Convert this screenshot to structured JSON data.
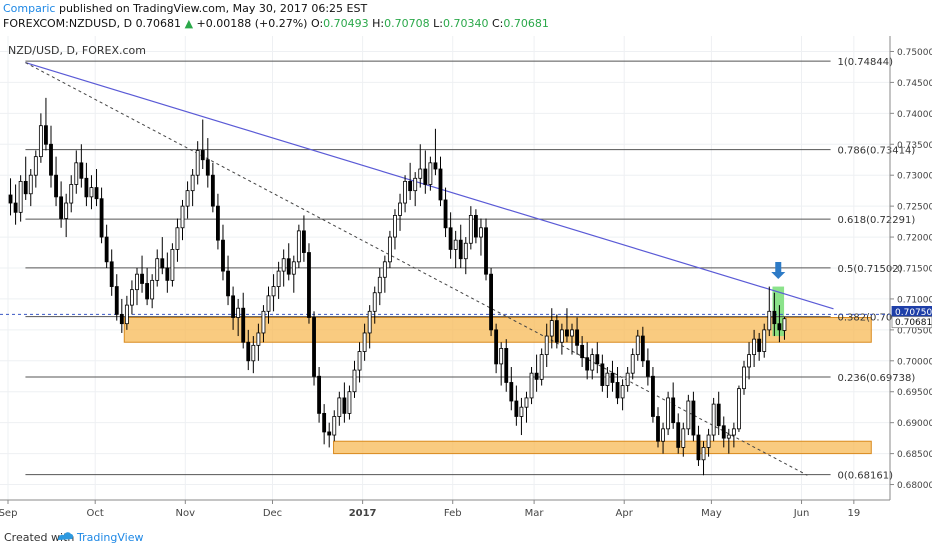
{
  "header": {
    "author": "Comparic",
    "published_text": " published on TradingView.com, May 30, 2017 06:25 EST",
    "symbol": "FOREXCOM:NZDUSD, D",
    "last": "0.70681",
    "change_arrow": "▲",
    "change": "+0.00188 (+0.27%)",
    "o_label": "O:",
    "o": "0.70493",
    "h_label": "H:",
    "h": "0.70708",
    "l_label": "L:",
    "l": "0.70340",
    "c_label": "C:",
    "c": "0.70681"
  },
  "footer": {
    "created_with": "Created with",
    "brand": "TradingView"
  },
  "chart_data": {
    "type": "candlestick",
    "title": "NZD/USD, D, FOREX.com",
    "ylim": [
      0.6775,
      0.7525
    ],
    "y_ticks": [
      "0.75000",
      "0.74500",
      "0.74000",
      "0.73500",
      "0.73000",
      "0.72500",
      "0.72000",
      "0.71500",
      "0.71000",
      "0.70500",
      "0.70000",
      "0.69500",
      "0.69000",
      "0.68500",
      "0.68000"
    ],
    "x_ticks": [
      {
        "label": "Sep",
        "day": 0
      },
      {
        "label": "Oct",
        "day": 30
      },
      {
        "label": "Nov",
        "day": 61
      },
      {
        "label": "Dec",
        "day": 91
      },
      {
        "label": "2017",
        "day": 122
      },
      {
        "label": "Feb",
        "day": 153
      },
      {
        "label": "Mar",
        "day": 181
      },
      {
        "label": "Apr",
        "day": 212
      },
      {
        "label": "May",
        "day": 242
      },
      {
        "label": "Jun",
        "day": 273
      },
      {
        "label": "19",
        "day": 291
      }
    ],
    "price_markers": [
      {
        "label": "0.70750",
        "price": 0.7075,
        "color": "#1e3fa8"
      },
      {
        "label": "0.70681",
        "price": 0.70681,
        "color": "#ffffff"
      }
    ],
    "fib_levels": [
      {
        "label": "1(0.74844)",
        "price": 0.74844
      },
      {
        "label": "0.786(0.73414)",
        "price": 0.73414
      },
      {
        "label": "0.618(0.72291)",
        "price": 0.72291
      },
      {
        "label": "0.5(0.71502)",
        "price": 0.71502
      },
      {
        "label": "0.382(0.70714)",
        "price": 0.70714
      },
      {
        "label": "0.236(0.69738)",
        "price": 0.69738
      },
      {
        "label": "0(0.68161)",
        "price": 0.68161
      }
    ],
    "zones": [
      {
        "day_start": 40,
        "day_end": 297,
        "top": 0.707,
        "bottom": 0.703,
        "color": "#f7b955"
      },
      {
        "day_start": 112,
        "day_end": 297,
        "top": 0.687,
        "bottom": 0.685,
        "color": "#f7b955"
      }
    ],
    "highlight": {
      "day_start": 263,
      "day_end": 267,
      "top": 0.712,
      "bottom": 0.704,
      "color": "#7ee07e"
    },
    "trendline": {
      "start": {
        "day": 6,
        "price": 0.7482
      },
      "end": {
        "day": 284,
        "price": 0.7084
      },
      "color": "#5a5ad6"
    },
    "dashed_line": {
      "start": {
        "day": 6,
        "price": 0.7482
      },
      "end": {
        "day": 275,
        "price": 0.6815
      }
    },
    "current_price_line": 0.7075,
    "arrow": {
      "day": 265,
      "price": 0.7137,
      "color": "#2e7bc6"
    },
    "candles": [
      [
        0.7268,
        0.7295,
        0.7235,
        0.7255
      ],
      [
        0.7255,
        0.7285,
        0.722,
        0.724
      ],
      [
        0.724,
        0.73,
        0.7225,
        0.729
      ],
      [
        0.729,
        0.733,
        0.726,
        0.727
      ],
      [
        0.727,
        0.731,
        0.725,
        0.73
      ],
      [
        0.73,
        0.734,
        0.728,
        0.733
      ],
      [
        0.733,
        0.74,
        0.732,
        0.738
      ],
      [
        0.738,
        0.7425,
        0.734,
        0.735
      ],
      [
        0.735,
        0.738,
        0.728,
        0.73
      ],
      [
        0.73,
        0.733,
        0.725,
        0.7265
      ],
      [
        0.7265,
        0.729,
        0.7215,
        0.723
      ],
      [
        0.723,
        0.727,
        0.72,
        0.7255
      ],
      [
        0.7255,
        0.73,
        0.724,
        0.7285
      ],
      [
        0.7285,
        0.734,
        0.727,
        0.732
      ],
      [
        0.732,
        0.735,
        0.728,
        0.7295
      ],
      [
        0.7295,
        0.732,
        0.725,
        0.7265
      ],
      [
        0.7265,
        0.73,
        0.7245,
        0.728
      ],
      [
        0.728,
        0.731,
        0.725,
        0.7262
      ],
      [
        0.7262,
        0.728,
        0.719,
        0.72
      ],
      [
        0.72,
        0.722,
        0.715,
        0.716
      ],
      [
        0.716,
        0.718,
        0.7105,
        0.712
      ],
      [
        0.712,
        0.714,
        0.7065,
        0.7075
      ],
      [
        0.7075,
        0.71,
        0.7045,
        0.706
      ],
      [
        0.706,
        0.7105,
        0.705,
        0.709
      ],
      [
        0.709,
        0.713,
        0.7075,
        0.7115
      ],
      [
        0.7115,
        0.715,
        0.709,
        0.714
      ],
      [
        0.714,
        0.717,
        0.711,
        0.7125
      ],
      [
        0.7125,
        0.715,
        0.709,
        0.71
      ],
      [
        0.71,
        0.714,
        0.7085,
        0.713
      ],
      [
        0.713,
        0.718,
        0.712,
        0.7165
      ],
      [
        0.7165,
        0.72,
        0.714,
        0.715
      ],
      [
        0.715,
        0.7175,
        0.711,
        0.713
      ],
      [
        0.713,
        0.719,
        0.712,
        0.718
      ],
      [
        0.718,
        0.723,
        0.716,
        0.7215
      ],
      [
        0.7215,
        0.726,
        0.7195,
        0.725
      ],
      [
        0.725,
        0.729,
        0.723,
        0.7275
      ],
      [
        0.7275,
        0.731,
        0.725,
        0.73
      ],
      [
        0.73,
        0.7355,
        0.7285,
        0.734
      ],
      [
        0.734,
        0.739,
        0.731,
        0.7325
      ],
      [
        0.7325,
        0.736,
        0.728,
        0.73
      ],
      [
        0.73,
        0.732,
        0.724,
        0.725
      ],
      [
        0.725,
        0.727,
        0.718,
        0.7195
      ],
      [
        0.7195,
        0.722,
        0.713,
        0.7145
      ],
      [
        0.7145,
        0.717,
        0.709,
        0.7105
      ],
      [
        0.7105,
        0.712,
        0.705,
        0.707
      ],
      [
        0.707,
        0.71,
        0.704,
        0.7085
      ],
      [
        0.7085,
        0.711,
        0.702,
        0.703
      ],
      [
        0.703,
        0.705,
        0.6985,
        0.7
      ],
      [
        0.7,
        0.704,
        0.698,
        0.7025
      ],
      [
        0.7025,
        0.706,
        0.7,
        0.7045
      ],
      [
        0.7045,
        0.709,
        0.703,
        0.708
      ],
      [
        0.708,
        0.712,
        0.706,
        0.7105
      ],
      [
        0.7105,
        0.714,
        0.708,
        0.712
      ],
      [
        0.712,
        0.716,
        0.71,
        0.7145
      ],
      [
        0.7145,
        0.718,
        0.712,
        0.7165
      ],
      [
        0.7165,
        0.719,
        0.713,
        0.714
      ],
      [
        0.714,
        0.717,
        0.711,
        0.716
      ],
      [
        0.716,
        0.722,
        0.715,
        0.721
      ],
      [
        0.721,
        0.7235,
        0.716,
        0.7175
      ],
      [
        0.7175,
        0.719,
        0.706,
        0.707
      ],
      [
        0.707,
        0.708,
        0.696,
        0.6975
      ],
      [
        0.6975,
        0.699,
        0.69,
        0.6915
      ],
      [
        0.6915,
        0.693,
        0.6865,
        0.6885
      ],
      [
        0.6885,
        0.69,
        0.686,
        0.688
      ],
      [
        0.688,
        0.692,
        0.687,
        0.691
      ],
      [
        0.691,
        0.695,
        0.6895,
        0.694
      ],
      [
        0.694,
        0.6965,
        0.69,
        0.6915
      ],
      [
        0.6915,
        0.696,
        0.6905,
        0.695
      ],
      [
        0.695,
        0.7,
        0.694,
        0.6985
      ],
      [
        0.6985,
        0.703,
        0.6965,
        0.7015
      ],
      [
        0.7015,
        0.706,
        0.7,
        0.7045
      ],
      [
        0.7045,
        0.709,
        0.702,
        0.708
      ],
      [
        0.708,
        0.712,
        0.706,
        0.711
      ],
      [
        0.711,
        0.715,
        0.709,
        0.7135
      ],
      [
        0.7135,
        0.717,
        0.711,
        0.716
      ],
      [
        0.716,
        0.721,
        0.715,
        0.72
      ],
      [
        0.72,
        0.7245,
        0.718,
        0.7235
      ],
      [
        0.7235,
        0.727,
        0.721,
        0.7255
      ],
      [
        0.7255,
        0.73,
        0.724,
        0.729
      ],
      [
        0.729,
        0.732,
        0.726,
        0.7275
      ],
      [
        0.7275,
        0.7305,
        0.725,
        0.7295
      ],
      [
        0.7295,
        0.735,
        0.728,
        0.731
      ],
      [
        0.731,
        0.734,
        0.727,
        0.7285
      ],
      [
        0.7285,
        0.733,
        0.7275,
        0.732
      ],
      [
        0.732,
        0.7375,
        0.73,
        0.731
      ],
      [
        0.731,
        0.733,
        0.725,
        0.726
      ],
      [
        0.726,
        0.728,
        0.72,
        0.7215
      ],
      [
        0.7215,
        0.724,
        0.7165,
        0.718
      ],
      [
        0.718,
        0.721,
        0.715,
        0.7195
      ],
      [
        0.7195,
        0.722,
        0.715,
        0.7165
      ],
      [
        0.7165,
        0.72,
        0.714,
        0.719
      ],
      [
        0.719,
        0.725,
        0.718,
        0.7235
      ],
      [
        0.7235,
        0.7245,
        0.719,
        0.72
      ],
      [
        0.72,
        0.723,
        0.717,
        0.7215
      ],
      [
        0.7215,
        0.723,
        0.713,
        0.714
      ],
      [
        0.714,
        0.715,
        0.704,
        0.705
      ],
      [
        0.705,
        0.706,
        0.698,
        0.6995
      ],
      [
        0.6995,
        0.703,
        0.696,
        0.702
      ],
      [
        0.702,
        0.7035,
        0.695,
        0.6965
      ],
      [
        0.6965,
        0.699,
        0.692,
        0.6935
      ],
      [
        0.6935,
        0.696,
        0.6895,
        0.691
      ],
      [
        0.691,
        0.694,
        0.688,
        0.6925
      ],
      [
        0.6925,
        0.695,
        0.69,
        0.694
      ],
      [
        0.694,
        0.699,
        0.693,
        0.698
      ],
      [
        0.698,
        0.701,
        0.695,
        0.697
      ],
      [
        0.697,
        0.702,
        0.696,
        0.701
      ],
      [
        0.701,
        0.706,
        0.699,
        0.704
      ],
      [
        0.704,
        0.7085,
        0.702,
        0.7065
      ],
      [
        0.7065,
        0.7075,
        0.702,
        0.703
      ],
      [
        0.703,
        0.706,
        0.701,
        0.705
      ],
      [
        0.705,
        0.7085,
        0.703,
        0.704
      ],
      [
        0.704,
        0.706,
        0.701,
        0.705
      ],
      [
        0.705,
        0.707,
        0.701,
        0.7025
      ],
      [
        0.7025,
        0.704,
        0.699,
        0.7005
      ],
      [
        0.7005,
        0.703,
        0.697,
        0.6985
      ],
      [
        0.6985,
        0.702,
        0.697,
        0.701
      ],
      [
        0.701,
        0.703,
        0.698,
        0.6995
      ],
      [
        0.6995,
        0.701,
        0.695,
        0.696
      ],
      [
        0.696,
        0.699,
        0.694,
        0.698
      ],
      [
        0.698,
        0.7,
        0.695,
        0.6965
      ],
      [
        0.6965,
        0.699,
        0.693,
        0.694
      ],
      [
        0.694,
        0.697,
        0.692,
        0.696
      ],
      [
        0.696,
        0.699,
        0.695,
        0.698
      ],
      [
        0.698,
        0.702,
        0.697,
        0.701
      ],
      [
        0.701,
        0.705,
        0.7,
        0.704
      ],
      [
        0.704,
        0.7055,
        0.699,
        0.7
      ],
      [
        0.7,
        0.702,
        0.696,
        0.6975
      ],
      [
        0.6975,
        0.699,
        0.69,
        0.691
      ],
      [
        0.691,
        0.6925,
        0.686,
        0.687
      ],
      [
        0.687,
        0.69,
        0.685,
        0.689
      ],
      [
        0.689,
        0.695,
        0.688,
        0.694
      ],
      [
        0.694,
        0.6965,
        0.689,
        0.69
      ],
      [
        0.69,
        0.6915,
        0.685,
        0.686
      ],
      [
        0.686,
        0.69,
        0.6845,
        0.689
      ],
      [
        0.689,
        0.6945,
        0.688,
        0.6935
      ],
      [
        0.6935,
        0.695,
        0.687,
        0.688
      ],
      [
        0.688,
        0.6895,
        0.683,
        0.684
      ],
      [
        0.684,
        0.687,
        0.6815,
        0.686
      ],
      [
        0.686,
        0.689,
        0.6845,
        0.688
      ],
      [
        0.688,
        0.694,
        0.687,
        0.693
      ],
      [
        0.693,
        0.695,
        0.688,
        0.6895
      ],
      [
        0.6895,
        0.691,
        0.686,
        0.6875
      ],
      [
        0.6875,
        0.689,
        0.685,
        0.688
      ],
      [
        0.688,
        0.69,
        0.686,
        0.689
      ],
      [
        0.689,
        0.696,
        0.6885,
        0.6955
      ],
      [
        0.6955,
        0.7,
        0.6945,
        0.699
      ],
      [
        0.699,
        0.703,
        0.697,
        0.701
      ],
      [
        0.701,
        0.705,
        0.699,
        0.7035
      ],
      [
        0.7035,
        0.7045,
        0.7,
        0.7015
      ],
      [
        0.7015,
        0.706,
        0.7005,
        0.705
      ],
      [
        0.705,
        0.712,
        0.704,
        0.708
      ],
      [
        0.708,
        0.711,
        0.704,
        0.706
      ],
      [
        0.706,
        0.709,
        0.703,
        0.705
      ],
      [
        0.7049,
        0.7071,
        0.7034,
        0.7068
      ]
    ]
  }
}
